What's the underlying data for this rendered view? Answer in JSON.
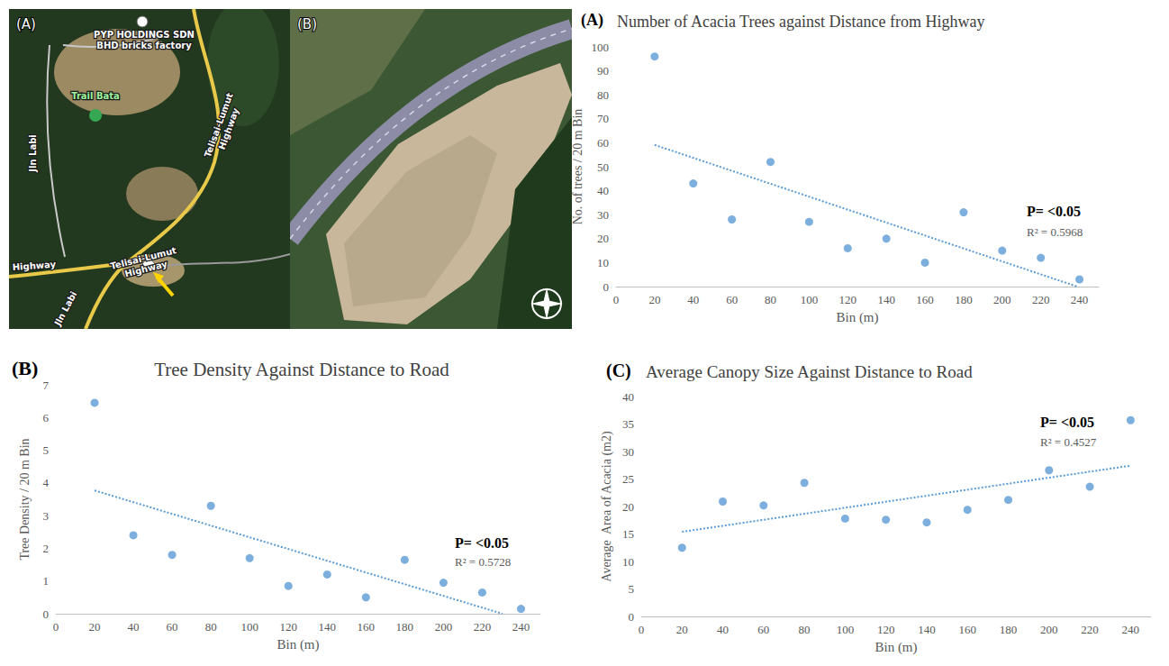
{
  "maps": [
    {
      "label": "(A)",
      "texts": [
        "PYP HOLDINGS SDN BHD bricks factory",
        "Trail Bata",
        "Jln Labi",
        "Telisai-Lumut Highway",
        "Telisai-Lumut Highway",
        "Highway",
        "Jln Labi"
      ]
    },
    {
      "label": "(B)"
    }
  ],
  "chart_data": [
    {
      "type": "scatter",
      "label": "(A)",
      "title": "Number of Acacia Trees against Distance from Highway",
      "xlabel": "Bin (m)",
      "ylabel": "No. of trees / 20 m Bin",
      "x": [
        20,
        40,
        60,
        80,
        100,
        120,
        140,
        160,
        180,
        200,
        220,
        240
      ],
      "values": [
        96,
        43,
        28,
        52,
        27,
        16,
        20,
        10,
        31,
        15,
        12,
        3
      ],
      "color": "#5b9bd5",
      "marker": "circle",
      "trendline": {
        "x": [
          20,
          238.9
        ],
        "y": [
          59.1,
          0
        ],
        "line_style": "dotted"
      },
      "annotations": [
        "P= <0.05",
        "R² = 0.5968"
      ],
      "xlim": [
        0,
        250
      ],
      "xticks": [
        0,
        20,
        40,
        60,
        80,
        100,
        120,
        140,
        160,
        180,
        200,
        220,
        240
      ],
      "ylim": [
        0,
        100
      ],
      "yticks": [
        0,
        10,
        20,
        30,
        40,
        50,
        60,
        70,
        80,
        90,
        100
      ],
      "grid": false
    },
    {
      "type": "scatter",
      "label": "(B)",
      "title": "Tree Density Against Distance to Road",
      "xlabel": "Bin (m)",
      "ylabel": "Tree Density / 20 m Bin",
      "x": [
        20,
        40,
        60,
        80,
        100,
        120,
        140,
        160,
        180,
        200,
        220,
        240
      ],
      "values": [
        6.45,
        2.4,
        1.8,
        3.3,
        1.7,
        0.85,
        1.2,
        0.5,
        1.65,
        0.95,
        0.65,
        0.15
      ],
      "color": "#5b9bd5",
      "marker": "circle",
      "trendline": {
        "x": [
          20,
          230.4
        ],
        "y": [
          3.77,
          0
        ],
        "line_style": "dotted"
      },
      "annotations": [
        "P= <0.05",
        "R² = 0.5728"
      ],
      "xlim": [
        0,
        250
      ],
      "xticks": [
        0,
        20,
        40,
        60,
        80,
        100,
        120,
        140,
        160,
        180,
        200,
        220,
        240
      ],
      "ylim": [
        0,
        7
      ],
      "yticks": [
        0,
        1,
        2,
        3,
        4,
        5,
        6,
        7
      ],
      "grid": false
    },
    {
      "type": "scatter",
      "label": "(C)",
      "title": "Average Canopy Size Against Distance to Road",
      "xlabel": "Bin (m)",
      "ylabel": "Average  Area of Acacia (m2)",
      "x": [
        20,
        40,
        60,
        80,
        100,
        120,
        140,
        160,
        180,
        200,
        220,
        240
      ],
      "values": [
        12.5,
        20.9,
        20.2,
        24.3,
        17.8,
        17.6,
        17.1,
        19.4,
        21.2,
        26.6,
        23.6,
        35.7
      ],
      "color": "#5b9bd5",
      "marker": "circle",
      "trendline": {
        "x": [
          20,
          240
        ],
        "y": [
          15.39,
          27.43
        ],
        "line_style": "dotted"
      },
      "annotations": [
        "P= <0.05",
        "R² = 0.4527"
      ],
      "xlim": [
        0,
        250
      ],
      "xticks": [
        0,
        20,
        40,
        60,
        80,
        100,
        120,
        140,
        160,
        180,
        200,
        220,
        240
      ],
      "ylim": [
        0,
        40
      ],
      "yticks": [
        0,
        5,
        10,
        15,
        20,
        25,
        30,
        35,
        40
      ],
      "grid": false
    }
  ]
}
